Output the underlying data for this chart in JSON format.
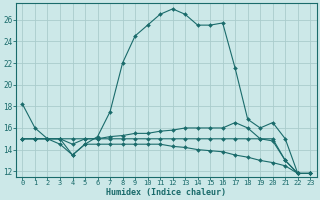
{
  "xlabel": "Humidex (Indice chaleur)",
  "bg_color": "#cce8e8",
  "grid_color": "#aacccc",
  "line_color": "#1a6b6b",
  "xlim": [
    -0.5,
    23.5
  ],
  "ylim": [
    11.5,
    27.5
  ],
  "xticks": [
    0,
    1,
    2,
    3,
    4,
    5,
    6,
    7,
    8,
    9,
    10,
    11,
    12,
    13,
    14,
    15,
    16,
    17,
    18,
    19,
    20,
    21,
    22,
    23
  ],
  "yticks": [
    12,
    14,
    16,
    18,
    20,
    22,
    24,
    26
  ],
  "lines": [
    [
      18.2,
      16.0,
      15.0,
      14.5,
      13.5,
      14.5,
      15.2,
      17.5,
      22.0,
      24.5,
      25.5,
      26.5,
      27.0,
      26.5,
      25.5,
      25.5,
      25.7,
      21.5,
      16.8,
      16.0,
      16.5,
      15.0,
      11.8,
      11.8
    ],
    [
      15.0,
      15.0,
      15.0,
      15.0,
      14.5,
      15.0,
      15.0,
      15.2,
      15.3,
      15.5,
      15.5,
      15.7,
      15.8,
      16.0,
      16.0,
      16.0,
      16.0,
      16.5,
      16.0,
      15.0,
      14.8,
      13.0,
      11.8,
      11.8
    ],
    [
      15.0,
      15.0,
      15.0,
      15.0,
      15.0,
      15.0,
      15.0,
      15.0,
      15.0,
      15.0,
      15.0,
      15.0,
      15.0,
      15.0,
      15.0,
      15.0,
      15.0,
      15.0,
      15.0,
      15.0,
      15.0,
      13.0,
      11.8,
      11.8
    ],
    [
      15.0,
      15.0,
      15.0,
      15.0,
      13.5,
      14.5,
      14.5,
      14.5,
      14.5,
      14.5,
      14.5,
      14.5,
      14.3,
      14.2,
      14.0,
      13.9,
      13.8,
      13.5,
      13.3,
      13.0,
      12.8,
      12.5,
      11.8,
      11.8
    ]
  ]
}
